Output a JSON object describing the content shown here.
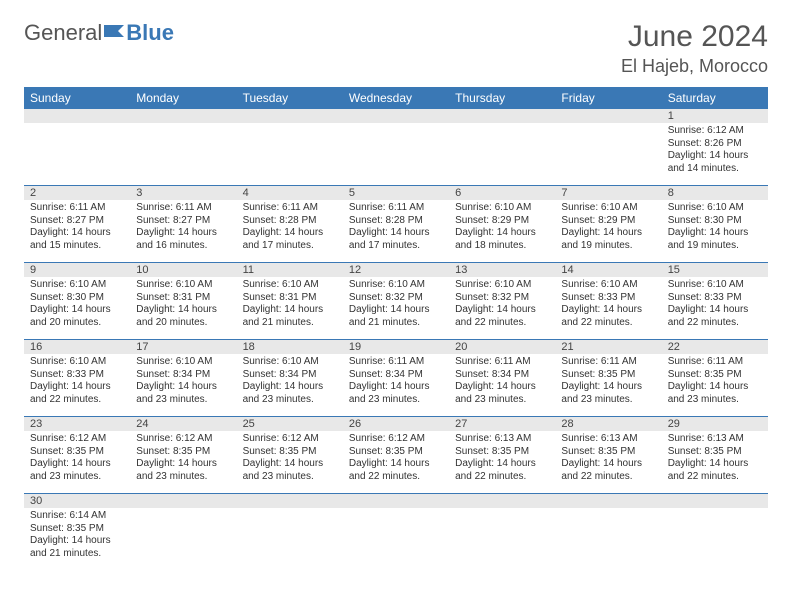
{
  "brand": {
    "part1": "General",
    "part2": "Blue"
  },
  "title": {
    "month": "June 2024",
    "location": "El Hajeb, Morocco"
  },
  "colors": {
    "headerBg": "#3a78b5",
    "rowBorder": "#3a78b5",
    "dayNumBg": "#e8e8e8"
  },
  "dayNames": [
    "Sunday",
    "Monday",
    "Tuesday",
    "Wednesday",
    "Thursday",
    "Friday",
    "Saturday"
  ],
  "weeks": [
    {
      "nums": [
        "",
        "",
        "",
        "",
        "",
        "",
        "1"
      ],
      "cells": [
        null,
        null,
        null,
        null,
        null,
        null,
        {
          "sunrise": "Sunrise: 6:12 AM",
          "sunset": "Sunset: 8:26 PM",
          "day1": "Daylight: 14 hours",
          "day2": "and 14 minutes."
        }
      ]
    },
    {
      "nums": [
        "2",
        "3",
        "4",
        "5",
        "6",
        "7",
        "8"
      ],
      "cells": [
        {
          "sunrise": "Sunrise: 6:11 AM",
          "sunset": "Sunset: 8:27 PM",
          "day1": "Daylight: 14 hours",
          "day2": "and 15 minutes."
        },
        {
          "sunrise": "Sunrise: 6:11 AM",
          "sunset": "Sunset: 8:27 PM",
          "day1": "Daylight: 14 hours",
          "day2": "and 16 minutes."
        },
        {
          "sunrise": "Sunrise: 6:11 AM",
          "sunset": "Sunset: 8:28 PM",
          "day1": "Daylight: 14 hours",
          "day2": "and 17 minutes."
        },
        {
          "sunrise": "Sunrise: 6:11 AM",
          "sunset": "Sunset: 8:28 PM",
          "day1": "Daylight: 14 hours",
          "day2": "and 17 minutes."
        },
        {
          "sunrise": "Sunrise: 6:10 AM",
          "sunset": "Sunset: 8:29 PM",
          "day1": "Daylight: 14 hours",
          "day2": "and 18 minutes."
        },
        {
          "sunrise": "Sunrise: 6:10 AM",
          "sunset": "Sunset: 8:29 PM",
          "day1": "Daylight: 14 hours",
          "day2": "and 19 minutes."
        },
        {
          "sunrise": "Sunrise: 6:10 AM",
          "sunset": "Sunset: 8:30 PM",
          "day1": "Daylight: 14 hours",
          "day2": "and 19 minutes."
        }
      ]
    },
    {
      "nums": [
        "9",
        "10",
        "11",
        "12",
        "13",
        "14",
        "15"
      ],
      "cells": [
        {
          "sunrise": "Sunrise: 6:10 AM",
          "sunset": "Sunset: 8:30 PM",
          "day1": "Daylight: 14 hours",
          "day2": "and 20 minutes."
        },
        {
          "sunrise": "Sunrise: 6:10 AM",
          "sunset": "Sunset: 8:31 PM",
          "day1": "Daylight: 14 hours",
          "day2": "and 20 minutes."
        },
        {
          "sunrise": "Sunrise: 6:10 AM",
          "sunset": "Sunset: 8:31 PM",
          "day1": "Daylight: 14 hours",
          "day2": "and 21 minutes."
        },
        {
          "sunrise": "Sunrise: 6:10 AM",
          "sunset": "Sunset: 8:32 PM",
          "day1": "Daylight: 14 hours",
          "day2": "and 21 minutes."
        },
        {
          "sunrise": "Sunrise: 6:10 AM",
          "sunset": "Sunset: 8:32 PM",
          "day1": "Daylight: 14 hours",
          "day2": "and 22 minutes."
        },
        {
          "sunrise": "Sunrise: 6:10 AM",
          "sunset": "Sunset: 8:33 PM",
          "day1": "Daylight: 14 hours",
          "day2": "and 22 minutes."
        },
        {
          "sunrise": "Sunrise: 6:10 AM",
          "sunset": "Sunset: 8:33 PM",
          "day1": "Daylight: 14 hours",
          "day2": "and 22 minutes."
        }
      ]
    },
    {
      "nums": [
        "16",
        "17",
        "18",
        "19",
        "20",
        "21",
        "22"
      ],
      "cells": [
        {
          "sunrise": "Sunrise: 6:10 AM",
          "sunset": "Sunset: 8:33 PM",
          "day1": "Daylight: 14 hours",
          "day2": "and 22 minutes."
        },
        {
          "sunrise": "Sunrise: 6:10 AM",
          "sunset": "Sunset: 8:34 PM",
          "day1": "Daylight: 14 hours",
          "day2": "and 23 minutes."
        },
        {
          "sunrise": "Sunrise: 6:10 AM",
          "sunset": "Sunset: 8:34 PM",
          "day1": "Daylight: 14 hours",
          "day2": "and 23 minutes."
        },
        {
          "sunrise": "Sunrise: 6:11 AM",
          "sunset": "Sunset: 8:34 PM",
          "day1": "Daylight: 14 hours",
          "day2": "and 23 minutes."
        },
        {
          "sunrise": "Sunrise: 6:11 AM",
          "sunset": "Sunset: 8:34 PM",
          "day1": "Daylight: 14 hours",
          "day2": "and 23 minutes."
        },
        {
          "sunrise": "Sunrise: 6:11 AM",
          "sunset": "Sunset: 8:35 PM",
          "day1": "Daylight: 14 hours",
          "day2": "and 23 minutes."
        },
        {
          "sunrise": "Sunrise: 6:11 AM",
          "sunset": "Sunset: 8:35 PM",
          "day1": "Daylight: 14 hours",
          "day2": "and 23 minutes."
        }
      ]
    },
    {
      "nums": [
        "23",
        "24",
        "25",
        "26",
        "27",
        "28",
        "29"
      ],
      "cells": [
        {
          "sunrise": "Sunrise: 6:12 AM",
          "sunset": "Sunset: 8:35 PM",
          "day1": "Daylight: 14 hours",
          "day2": "and 23 minutes."
        },
        {
          "sunrise": "Sunrise: 6:12 AM",
          "sunset": "Sunset: 8:35 PM",
          "day1": "Daylight: 14 hours",
          "day2": "and 23 minutes."
        },
        {
          "sunrise": "Sunrise: 6:12 AM",
          "sunset": "Sunset: 8:35 PM",
          "day1": "Daylight: 14 hours",
          "day2": "and 23 minutes."
        },
        {
          "sunrise": "Sunrise: 6:12 AM",
          "sunset": "Sunset: 8:35 PM",
          "day1": "Daylight: 14 hours",
          "day2": "and 22 minutes."
        },
        {
          "sunrise": "Sunrise: 6:13 AM",
          "sunset": "Sunset: 8:35 PM",
          "day1": "Daylight: 14 hours",
          "day2": "and 22 minutes."
        },
        {
          "sunrise": "Sunrise: 6:13 AM",
          "sunset": "Sunset: 8:35 PM",
          "day1": "Daylight: 14 hours",
          "day2": "and 22 minutes."
        },
        {
          "sunrise": "Sunrise: 6:13 AM",
          "sunset": "Sunset: 8:35 PM",
          "day1": "Daylight: 14 hours",
          "day2": "and 22 minutes."
        }
      ]
    },
    {
      "nums": [
        "30",
        "",
        "",
        "",
        "",
        "",
        ""
      ],
      "cells": [
        {
          "sunrise": "Sunrise: 6:14 AM",
          "sunset": "Sunset: 8:35 PM",
          "day1": "Daylight: 14 hours",
          "day2": "and 21 minutes."
        },
        null,
        null,
        null,
        null,
        null,
        null
      ]
    }
  ]
}
